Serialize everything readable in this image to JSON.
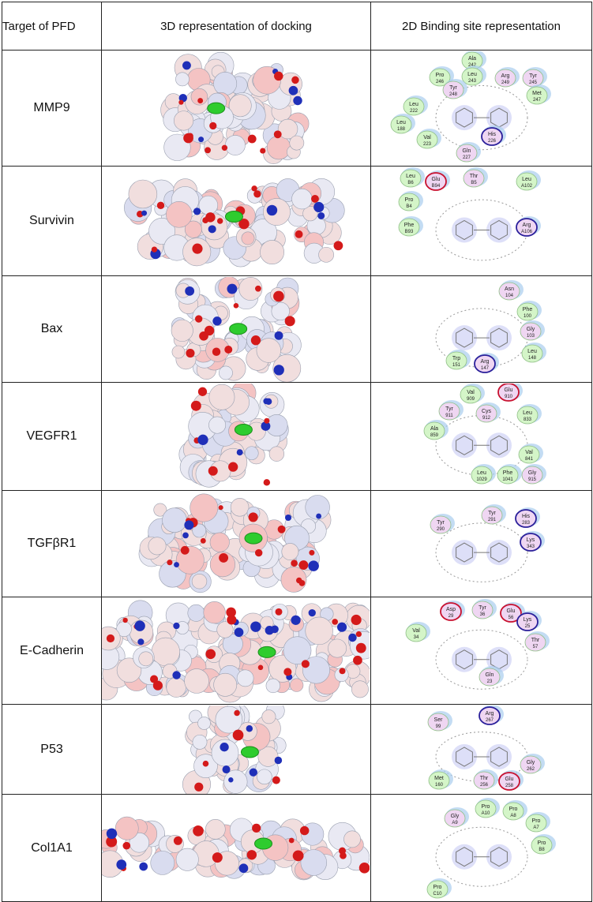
{
  "headers": [
    "Target of PFD",
    "3D representation of docking",
    "2D Binding site representation"
  ],
  "rows": [
    {
      "target": "MMP9",
      "residues": [
        {
          "n": "Ala",
          "i": "242",
          "t": "h"
        },
        {
          "n": "Pro",
          "i": "246",
          "t": "h"
        },
        {
          "n": "Leu",
          "i": "243",
          "t": "h"
        },
        {
          "n": "Arg",
          "i": "249",
          "t": "p"
        },
        {
          "n": "Tyr",
          "i": "245",
          "t": "p"
        },
        {
          "n": "Tyr",
          "i": "248",
          "t": "p"
        },
        {
          "n": "Met",
          "i": "247",
          "t": "h"
        },
        {
          "n": "Leu",
          "i": "222",
          "t": "h"
        },
        {
          "n": "Leu",
          "i": "188",
          "t": "h"
        },
        {
          "n": "Val",
          "i": "223",
          "t": "h"
        },
        {
          "n": "His",
          "i": "226",
          "t": "b"
        },
        {
          "n": "Gln",
          "i": "227",
          "t": "p"
        }
      ]
    },
    {
      "target": "Survivin",
      "residues": [
        {
          "n": "Leu",
          "i": "B6",
          "t": "h"
        },
        {
          "n": "Glu",
          "i": "B94",
          "t": "a"
        },
        {
          "n": "Thr",
          "i": "B5",
          "t": "p"
        },
        {
          "n": "Leu",
          "i": "A102",
          "t": "h"
        },
        {
          "n": "Pro",
          "i": "B4",
          "t": "h"
        },
        {
          "n": "Phe",
          "i": "B93",
          "t": "h"
        },
        {
          "n": "Arg",
          "i": "A106",
          "t": "b"
        }
      ]
    },
    {
      "target": "Bax",
      "residues": [
        {
          "n": "Asn",
          "i": "104",
          "t": "p"
        },
        {
          "n": "Phe",
          "i": "100",
          "t": "h"
        },
        {
          "n": "Gly",
          "i": "103",
          "t": "p"
        },
        {
          "n": "Leu",
          "i": "148",
          "t": "h"
        },
        {
          "n": "Trp",
          "i": "151",
          "t": "h"
        },
        {
          "n": "Arg",
          "i": "147",
          "t": "b"
        }
      ]
    },
    {
      "target": "VEGFR1",
      "residues": [
        {
          "n": "Val",
          "i": "909",
          "t": "h"
        },
        {
          "n": "Glu",
          "i": "910",
          "t": "a"
        },
        {
          "n": "Tyr",
          "i": "911",
          "t": "p"
        },
        {
          "n": "Cys",
          "i": "912",
          "t": "p"
        },
        {
          "n": "Leu",
          "i": "833",
          "t": "h"
        },
        {
          "n": "Ala",
          "i": "859",
          "t": "h"
        },
        {
          "n": "Val",
          "i": "841",
          "t": "h"
        },
        {
          "n": "Leu",
          "i": "1029",
          "t": "h"
        },
        {
          "n": "Phe",
          "i": "1041",
          "t": "h"
        },
        {
          "n": "Gly",
          "i": "915",
          "t": "p"
        }
      ]
    },
    {
      "target": "TGFβR1",
      "residues": [
        {
          "n": "Tyr",
          "i": "291",
          "t": "p"
        },
        {
          "n": "His",
          "i": "283",
          "t": "b"
        },
        {
          "n": "Tyr",
          "i": "290",
          "t": "p"
        },
        {
          "n": "Lys",
          "i": "343",
          "t": "b"
        }
      ]
    },
    {
      "target": "E-Cadherin",
      "residues": [
        {
          "n": "Asp",
          "i": "29",
          "t": "a"
        },
        {
          "n": "Tyr",
          "i": "36",
          "t": "p"
        },
        {
          "n": "Glu",
          "i": "56",
          "t": "a"
        },
        {
          "n": "Lys",
          "i": "25",
          "t": "b"
        },
        {
          "n": "Val",
          "i": "34",
          "t": "h"
        },
        {
          "n": "Thr",
          "i": "57",
          "t": "p"
        },
        {
          "n": "Gln",
          "i": "23",
          "t": "p"
        }
      ]
    },
    {
      "target": "P53",
      "residues": [
        {
          "n": "Arg",
          "i": "267",
          "t": "b"
        },
        {
          "n": "Ser",
          "i": "99",
          "t": "p"
        },
        {
          "n": "Gly",
          "i": "262",
          "t": "p"
        },
        {
          "n": "Met",
          "i": "160",
          "t": "h"
        },
        {
          "n": "Thr",
          "i": "256",
          "t": "p"
        },
        {
          "n": "Glu",
          "i": "258",
          "t": "a"
        }
      ]
    },
    {
      "target": "Col1A1",
      "residues": [
        {
          "n": "Pro",
          "i": "A10",
          "t": "h"
        },
        {
          "n": "Pro",
          "i": "A8",
          "t": "h"
        },
        {
          "n": "Gly",
          "i": "A9",
          "t": "p"
        },
        {
          "n": "Pro",
          "i": "A7",
          "t": "h"
        },
        {
          "n": "Pro",
          "i": "B8",
          "t": "h"
        },
        {
          "n": "Pro",
          "i": "C10",
          "t": "h"
        }
      ]
    }
  ],
  "colors": {
    "hydrophobic": "#d4f5c8",
    "polar": "#efd6f2",
    "acidic_ring": "#c8102e",
    "basic_ring": "#2a1f9a",
    "halo": "#a9cdee",
    "ligand": "#2ecc2e"
  }
}
